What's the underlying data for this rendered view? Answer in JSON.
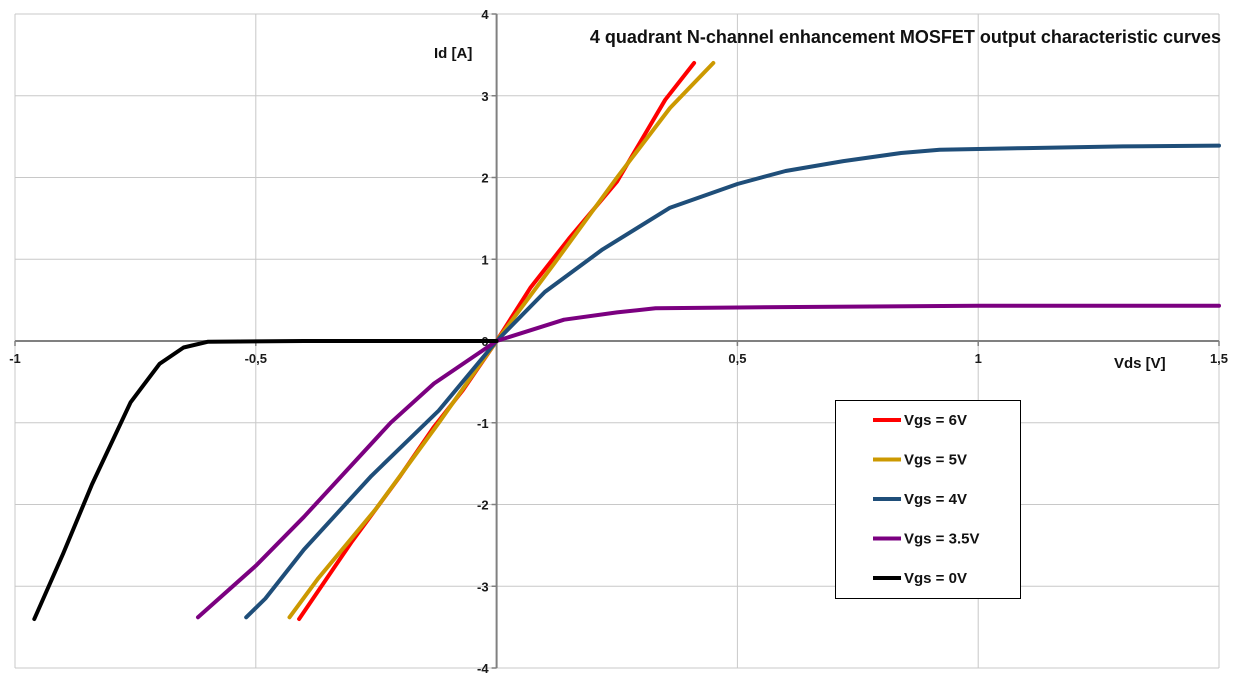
{
  "chart_data": {
    "type": "line",
    "title": "4 quadrant N-channel enhancement MOSFET output characteristic curves",
    "xlabel": "Vds [V]",
    "ylabel": "Id [A]",
    "xlim": [
      -1,
      1.5
    ],
    "ylim": [
      -4,
      4
    ],
    "x_ticks": [
      -1,
      -0.5,
      0,
      0.5,
      1,
      1.5
    ],
    "x_tick_labels": [
      "-1",
      "-0,5",
      "",
      "0,5",
      "1",
      "1,5"
    ],
    "y_ticks": [
      -4,
      -3,
      -2,
      -1,
      0,
      1,
      2,
      3,
      4
    ],
    "y_tick_labels": [
      "-4",
      "-3",
      "-2",
      "-1",
      "0",
      "1",
      "2",
      "3",
      "4"
    ],
    "grid": true,
    "legend_position": "right-center",
    "series": [
      {
        "name": "Vgs = 6V",
        "color": "#ff0000",
        "points": [
          [
            -0.41,
            -3.4
          ],
          [
            -0.3,
            -2.45
          ],
          [
            -0.2,
            -1.65
          ],
          [
            -0.13,
            -1.05
          ],
          [
            -0.07,
            -0.6
          ],
          [
            0,
            0
          ],
          [
            0.07,
            0.65
          ],
          [
            0.15,
            1.25
          ],
          [
            0.25,
            1.95
          ],
          [
            0.35,
            2.95
          ],
          [
            0.41,
            3.4
          ]
        ]
      },
      {
        "name": "Vgs = 5V",
        "color": "#cc9900",
        "points": [
          [
            -0.43,
            -3.38
          ],
          [
            -0.37,
            -2.9
          ],
          [
            -0.25,
            -2.05
          ],
          [
            -0.12,
            -1.0
          ],
          [
            0,
            0
          ],
          [
            0.12,
            0.95
          ],
          [
            0.25,
            2.0
          ],
          [
            0.36,
            2.85
          ],
          [
            0.45,
            3.4
          ]
        ]
      },
      {
        "name": "Vgs = 4V",
        "color": "#1f4e79",
        "points": [
          [
            -0.52,
            -3.38
          ],
          [
            -0.48,
            -3.15
          ],
          [
            -0.4,
            -2.55
          ],
          [
            -0.26,
            -1.65
          ],
          [
            -0.12,
            -0.85
          ],
          [
            0,
            0
          ],
          [
            0.1,
            0.6
          ],
          [
            0.22,
            1.12
          ],
          [
            0.36,
            1.63
          ],
          [
            0.5,
            1.92
          ],
          [
            0.6,
            2.08
          ],
          [
            0.72,
            2.2
          ],
          [
            0.84,
            2.3
          ],
          [
            0.92,
            2.34
          ],
          [
            1.1,
            2.36
          ],
          [
            1.3,
            2.38
          ],
          [
            1.5,
            2.39
          ]
        ]
      },
      {
        "name": "Vgs = 3.5V",
        "color": "#7b0080",
        "points": [
          [
            -0.62,
            -3.38
          ],
          [
            -0.5,
            -2.75
          ],
          [
            -0.4,
            -2.15
          ],
          [
            -0.22,
            -1.0
          ],
          [
            -0.13,
            -0.52
          ],
          [
            0,
            0
          ],
          [
            0.14,
            0.26
          ],
          [
            0.25,
            0.35
          ],
          [
            0.33,
            0.4
          ],
          [
            0.5,
            0.41
          ],
          [
            0.7,
            0.42
          ],
          [
            1.0,
            0.43
          ],
          [
            1.5,
            0.43
          ]
        ]
      },
      {
        "name": "Vgs = 0V",
        "color": "#000000",
        "points": [
          [
            -0.96,
            -3.4
          ],
          [
            -0.9,
            -2.6
          ],
          [
            -0.84,
            -1.75
          ],
          [
            -0.76,
            -0.75
          ],
          [
            -0.7,
            -0.28
          ],
          [
            -0.65,
            -0.08
          ],
          [
            -0.6,
            -0.01
          ],
          [
            -0.4,
            0
          ],
          [
            -0.2,
            0
          ],
          [
            0,
            0
          ]
        ]
      }
    ]
  }
}
